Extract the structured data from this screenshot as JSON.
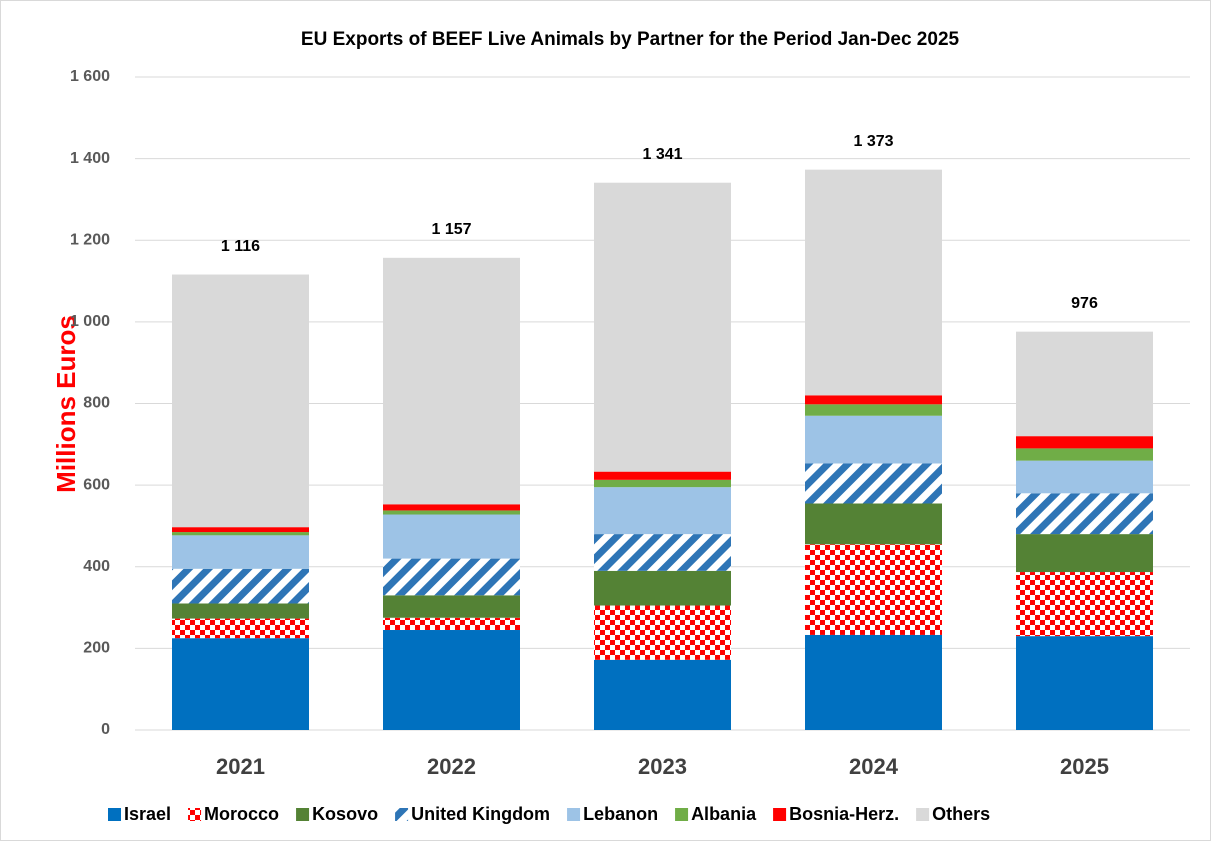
{
  "chart_data": {
    "type": "stacked_bar",
    "title": "EU Exports of BEEF Live Animals by Partner for the Period Jan-Dec 2025",
    "y_label": "Millions Euros",
    "categories": [
      "2021",
      "2022",
      "2023",
      "2024",
      "2025"
    ],
    "series": [
      {
        "name": "Israel",
        "color": "#0070c0",
        "values": [
          225,
          245,
          172,
          233,
          230
        ]
      },
      {
        "name": "Morocco",
        "color": "#ff0000",
        "pattern": "checker",
        "values": [
          48,
          30,
          133,
          222,
          157
        ]
      },
      {
        "name": "Kosovo",
        "color": "#548235",
        "values": [
          37,
          55,
          85,
          100,
          93
        ]
      },
      {
        "name": "United Kingdom",
        "color": "#2e75b6",
        "pattern": "diagonal",
        "values": [
          85,
          90,
          90,
          98,
          100
        ]
      },
      {
        "name": "Lebanon",
        "color": "#9dc3e6",
        "values": [
          82,
          108,
          115,
          117,
          80
        ]
      },
      {
        "name": "Albania",
        "color": "#70ad47",
        "values": [
          8,
          10,
          18,
          28,
          30
        ]
      },
      {
        "name": "Bosnia-Herz.",
        "color": "#ff0000",
        "values": [
          12,
          15,
          20,
          22,
          30
        ]
      },
      {
        "name": "Others",
        "color": "#d9d9d9",
        "values": [
          619,
          604,
          708,
          553,
          256
        ]
      }
    ],
    "totals": {
      "values": [
        1116,
        1157,
        1341,
        1373,
        976
      ],
      "value_labels": [
        "1 116",
        "1 157",
        "1 341",
        "1 373",
        "976"
      ]
    },
    "ylim": [
      0,
      1600
    ],
    "yticks": [
      0,
      200,
      400,
      600,
      800,
      {
        "value": 1000,
        "label": "1 000"
      },
      {
        "value": 1200,
        "label": "1 200"
      },
      {
        "value": 1400,
        "label": "1 400"
      },
      {
        "value": 1600,
        "label": "1 600"
      }
    ],
    "grid": true,
    "legend": "bottom"
  }
}
